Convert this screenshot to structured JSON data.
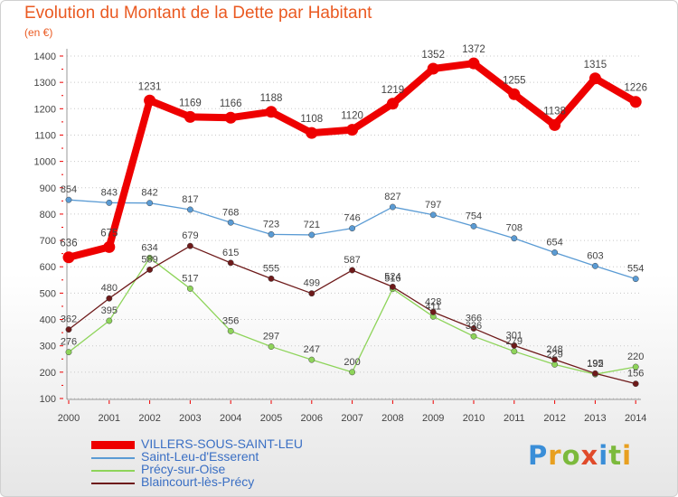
{
  "header": {
    "title": "Evolution du Montant de la Dette par Habitant",
    "subtitle": "(en €)"
  },
  "brand": {
    "letters": [
      "P",
      "r",
      "o",
      "x",
      "i",
      "t",
      "i"
    ],
    "colors": [
      "#3a8ed8",
      "#e8a020",
      "#7cba3c",
      "#e04a2a",
      "#3a8ed8",
      "#7cba3c",
      "#e8a020"
    ]
  },
  "chart_data": {
    "type": "line",
    "title": "Evolution du Montant de la Dette par Habitant",
    "subtitle": "(en €)",
    "xlabel": "",
    "ylabel": "",
    "ylim": [
      100,
      1400
    ],
    "yticks": [
      100,
      200,
      300,
      400,
      500,
      600,
      700,
      800,
      900,
      1000,
      1100,
      1200,
      1300,
      1400
    ],
    "grid": "horizontal dotted",
    "legend_position": "bottom-left",
    "x": [
      "2000",
      "2001",
      "2002",
      "2003",
      "2004",
      "2005",
      "2006",
      "2007",
      "2008",
      "2009",
      "2010",
      "2011",
      "2012",
      "2013",
      "2014"
    ],
    "series": [
      {
        "name": "VILLERS-SOUS-SAINT-LEU",
        "color": "#ee0000",
        "emphasis": true,
        "values": [
          636,
          675,
          1231,
          1169,
          1166,
          1188,
          1108,
          1120,
          1219,
          1352,
          1372,
          1255,
          1138,
          1315,
          1226
        ],
        "labels": [
          "636",
          "675",
          "1231",
          "1169",
          "1166",
          "1188",
          "1108",
          "1120",
          "1219",
          "1352",
          "1372",
          "1255",
          "1138",
          "1315",
          "1226"
        ]
      },
      {
        "name": "Saint-Leu-d'Esserent",
        "color": "#5a9bd4",
        "values": [
          854,
          843,
          842,
          817,
          768,
          723,
          721,
          746,
          827,
          797,
          754,
          708,
          654,
          603,
          554
        ],
        "labels": [
          "854",
          "843",
          "842",
          "817",
          "768",
          "723",
          "721",
          "746",
          "827",
          "797",
          "754",
          "708",
          "654",
          "603",
          "554"
        ]
      },
      {
        "name": "Précy-sur-Oise",
        "color": "#8ed45a",
        "values": [
          276,
          395,
          634,
          517,
          356,
          297,
          247,
          200,
          516,
          411,
          336,
          279,
          229,
          192,
          220
        ],
        "labels": [
          "276",
          "395",
          "634",
          "517",
          "356",
          "297",
          "247",
          "200",
          "516",
          "411",
          "336",
          "279",
          "229",
          "192",
          "220"
        ]
      },
      {
        "name": "Blaincourt-lès-Précy",
        "color": "#6e1a1a",
        "values": [
          362,
          480,
          589,
          679,
          615,
          555,
          499,
          587,
          524,
          428,
          366,
          301,
          248,
          195,
          156
        ],
        "labels": [
          "362",
          "480",
          "589",
          "679",
          "615",
          "555",
          "499",
          "587",
          "524",
          "428",
          "366",
          "301",
          "248",
          "195",
          "156"
        ]
      }
    ]
  }
}
